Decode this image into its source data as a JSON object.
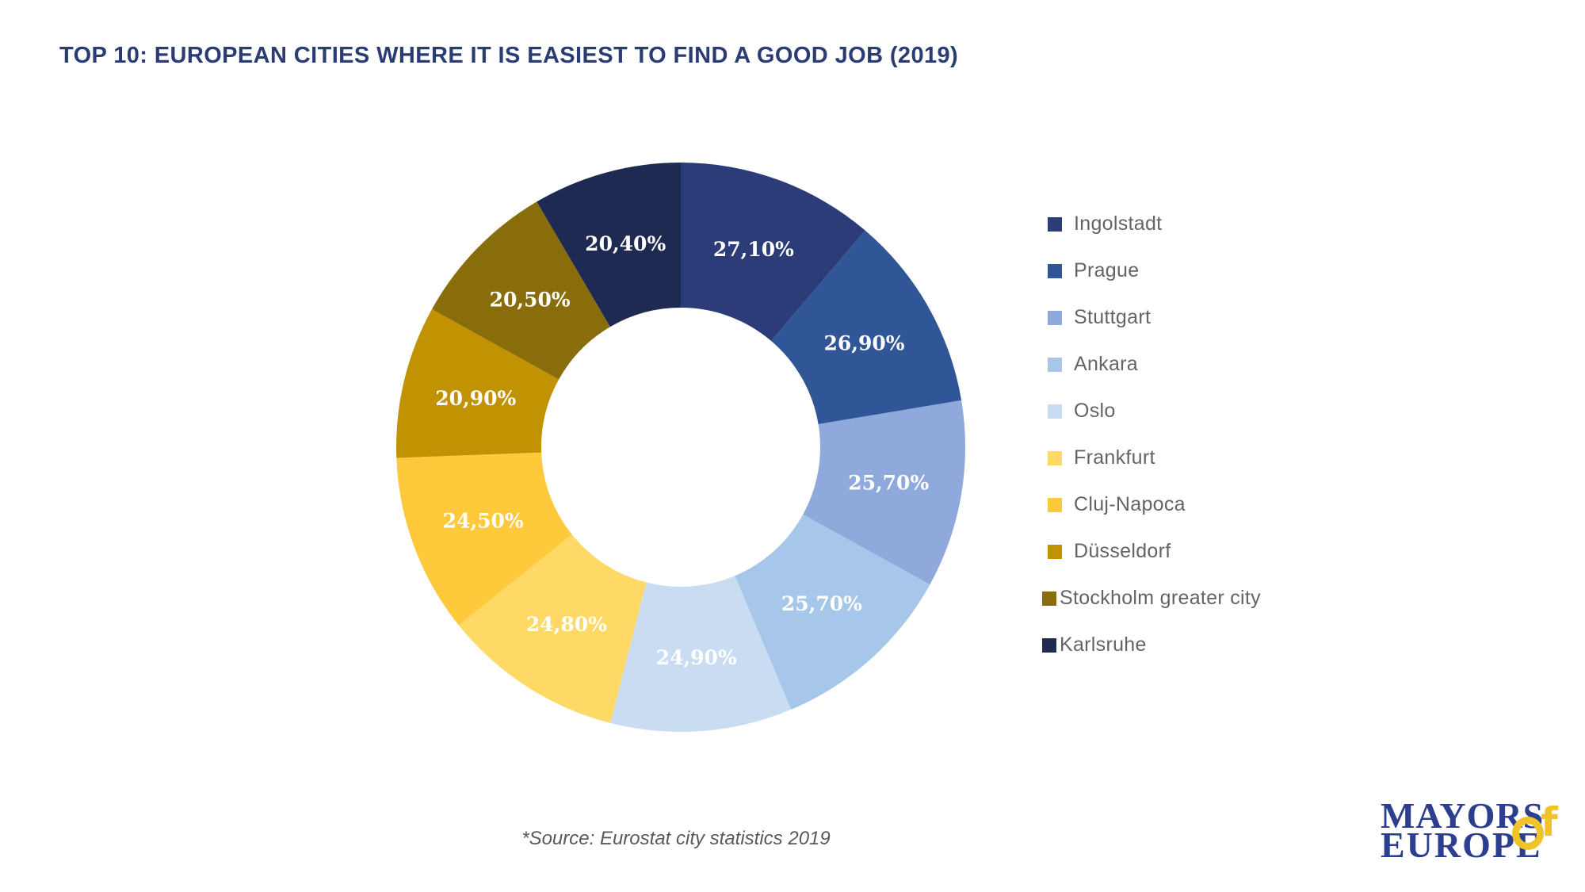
{
  "title": "TOP 10: EUROPEAN CITIES WHERE IT IS EASIEST TO FIND A GOOD JOB (2019)",
  "source_note": "*Source: Eurostat city statistics 2019",
  "logo": {
    "word1": "MAYORS",
    "word2": "EUROPE",
    "connector": "Of"
  },
  "colors": {
    "background": "#FFFFFF",
    "title_text": "#2B3C74",
    "legend_text": "#646464",
    "source_text": "#595959",
    "slice_label_text": "#FFFFFF",
    "logo_text": "#2C3F8E",
    "logo_accent": "#F0C428"
  },
  "chart_data": {
    "type": "pie",
    "subtype": "donut",
    "title": "TOP 10: EUROPEAN CITIES WHERE IT IS EASIEST TO FIND A GOOD JOB (2019)",
    "legend_position": "right",
    "direction": "clockwise",
    "start_angle_deg": 0,
    "inner_radius_ratio": 0.49,
    "value_unit": "%",
    "decimal_separator": ",",
    "series": [
      {
        "name": "Ingolstadt",
        "value": 27.1,
        "label": "27,10%",
        "color": "#2B3C78"
      },
      {
        "name": "Prague",
        "value": 26.9,
        "label": "26,90%",
        "color": "#305697"
      },
      {
        "name": "Stuttgart",
        "value": 25.7,
        "label": "25,70%",
        "color": "#8FA9DC"
      },
      {
        "name": "Ankara",
        "value": 25.7,
        "label": "25,70%",
        "color": "#A6C7E9"
      },
      {
        "name": "Oslo",
        "value": 24.9,
        "label": "24,90%",
        "color": "#C9DCF2"
      },
      {
        "name": "Frankfurt",
        "value": 24.8,
        "label": "24,80%",
        "color": "#FFD966"
      },
      {
        "name": "Cluj-Napoca",
        "value": 24.5,
        "label": "24,50%",
        "color": "#FFC93C"
      },
      {
        "name": "Düsseldorf",
        "value": 20.9,
        "label": "20,90%",
        "color": "#C19202"
      },
      {
        "name": "Stockholm greater city",
        "value": 20.5,
        "label": "20,50%",
        "color": "#8A6D0B",
        "legend_tight": true
      },
      {
        "name": "Karlsruhe",
        "value": 20.4,
        "label": "20,40%",
        "color": "#1E2A52",
        "legend_tight": true
      }
    ]
  }
}
